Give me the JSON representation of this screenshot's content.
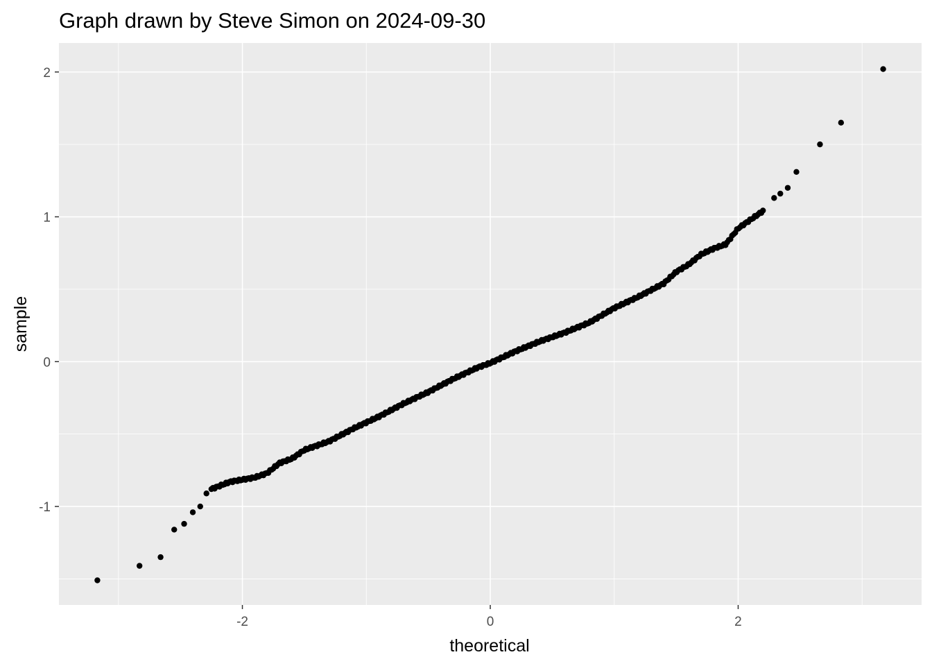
{
  "chart_data": {
    "type": "scatter",
    "title": "Graph drawn by Steve Simon on 2024-09-30",
    "xlabel": "theoretical",
    "ylabel": "sample",
    "xlim": [
      -3.48,
      3.48
    ],
    "ylim": [
      -1.68,
      2.2
    ],
    "x_ticks": [
      -2,
      0,
      2
    ],
    "y_ticks": [
      -1,
      0,
      1,
      2
    ],
    "x_tick_labels": [
      "-2",
      "0",
      "2"
    ],
    "y_tick_labels": [
      "-1",
      "0",
      "1",
      "2"
    ],
    "grid": true,
    "panel_background": "#ebebeb",
    "grid_color": "#ffffff",
    "point_color": "#000000",
    "outliers": [
      {
        "x": -3.17,
        "y": -1.51
      },
      {
        "x": -2.83,
        "y": -1.41
      },
      {
        "x": -2.66,
        "y": -1.35
      },
      {
        "x": -2.55,
        "y": -1.16
      },
      {
        "x": -2.47,
        "y": -1.12
      },
      {
        "x": -2.4,
        "y": -1.04
      },
      {
        "x": -2.34,
        "y": -1.0
      },
      {
        "x": -2.29,
        "y": -0.91
      },
      {
        "x": 2.29,
        "y": 1.13
      },
      {
        "x": 2.34,
        "y": 1.16
      },
      {
        "x": 2.4,
        "y": 1.2
      },
      {
        "x": 2.47,
        "y": 1.31
      },
      {
        "x": 2.66,
        "y": 1.5
      },
      {
        "x": 2.83,
        "y": 1.65
      },
      {
        "x": 3.17,
        "y": 2.02
      }
    ],
    "curve_knots": [
      {
        "x": -2.25,
        "y": -0.88
      },
      {
        "x": -2.1,
        "y": -0.83
      },
      {
        "x": -1.9,
        "y": -0.8
      },
      {
        "x": -1.8,
        "y": -0.77
      },
      {
        "x": -1.7,
        "y": -0.7
      },
      {
        "x": -1.6,
        "y": -0.67
      },
      {
        "x": -1.5,
        "y": -0.61
      },
      {
        "x": -1.3,
        "y": -0.55
      },
      {
        "x": -1.1,
        "y": -0.46
      },
      {
        "x": -0.9,
        "y": -0.38
      },
      {
        "x": -0.7,
        "y": -0.29
      },
      {
        "x": -0.5,
        "y": -0.21
      },
      {
        "x": -0.3,
        "y": -0.12
      },
      {
        "x": -0.1,
        "y": -0.04
      },
      {
        "x": 0.0,
        "y": -0.01
      },
      {
        "x": 0.2,
        "y": 0.07
      },
      {
        "x": 0.4,
        "y": 0.14
      },
      {
        "x": 0.6,
        "y": 0.2
      },
      {
        "x": 0.8,
        "y": 0.27
      },
      {
        "x": 1.0,
        "y": 0.37
      },
      {
        "x": 1.2,
        "y": 0.45
      },
      {
        "x": 1.4,
        "y": 0.54
      },
      {
        "x": 1.5,
        "y": 0.62
      },
      {
        "x": 1.6,
        "y": 0.67
      },
      {
        "x": 1.7,
        "y": 0.74
      },
      {
        "x": 1.8,
        "y": 0.78
      },
      {
        "x": 1.9,
        "y": 0.81
      },
      {
        "x": 2.0,
        "y": 0.92
      },
      {
        "x": 2.1,
        "y": 0.98
      },
      {
        "x": 2.2,
        "y": 1.04
      }
    ],
    "curve_point_count": 340
  }
}
